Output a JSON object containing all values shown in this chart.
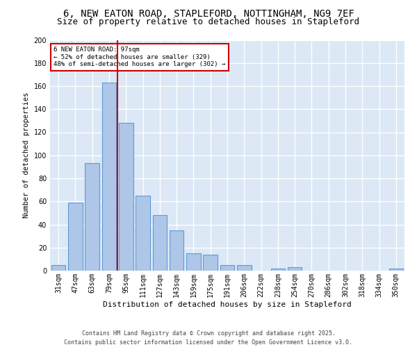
{
  "title_line1": "6, NEW EATON ROAD, STAPLEFORD, NOTTINGHAM, NG9 7EF",
  "title_line2": "Size of property relative to detached houses in Stapleford",
  "xlabel": "Distribution of detached houses by size in Stapleford",
  "ylabel": "Number of detached properties",
  "categories": [
    "31sqm",
    "47sqm",
    "63sqm",
    "79sqm",
    "95sqm",
    "111sqm",
    "127sqm",
    "143sqm",
    "159sqm",
    "175sqm",
    "191sqm",
    "206sqm",
    "222sqm",
    "238sqm",
    "254sqm",
    "270sqm",
    "286sqm",
    "302sqm",
    "318sqm",
    "334sqm",
    "350sqm"
  ],
  "values": [
    5,
    59,
    93,
    163,
    128,
    65,
    48,
    35,
    15,
    14,
    5,
    5,
    0,
    2,
    3,
    0,
    0,
    0,
    0,
    0,
    2
  ],
  "bar_color": "#aec6e8",
  "bar_edge_color": "#5b9bd5",
  "vline_x": 3.5,
  "vline_color": "#cc0000",
  "annotation_text": "6 NEW EATON ROAD: 97sqm\n← 52% of detached houses are smaller (329)\n48% of semi-detached houses are larger (302) →",
  "annotation_box_color": "#ffffff",
  "annotation_box_edge_color": "#cc0000",
  "annotation_fontsize": 6.5,
  "ylim": [
    0,
    200
  ],
  "yticks": [
    0,
    20,
    40,
    60,
    80,
    100,
    120,
    140,
    160,
    180,
    200
  ],
  "background_color": "#dce8f5",
  "grid_color": "#ffffff",
  "footer_line1": "Contains HM Land Registry data © Crown copyright and database right 2025.",
  "footer_line2": "Contains public sector information licensed under the Open Government Licence v3.0.",
  "footer_fontsize": 6.0,
  "title_fontsize1": 10,
  "title_fontsize2": 9,
  "ylabel_fontsize": 7.5,
  "xlabel_fontsize": 8,
  "tick_fontsize": 7
}
